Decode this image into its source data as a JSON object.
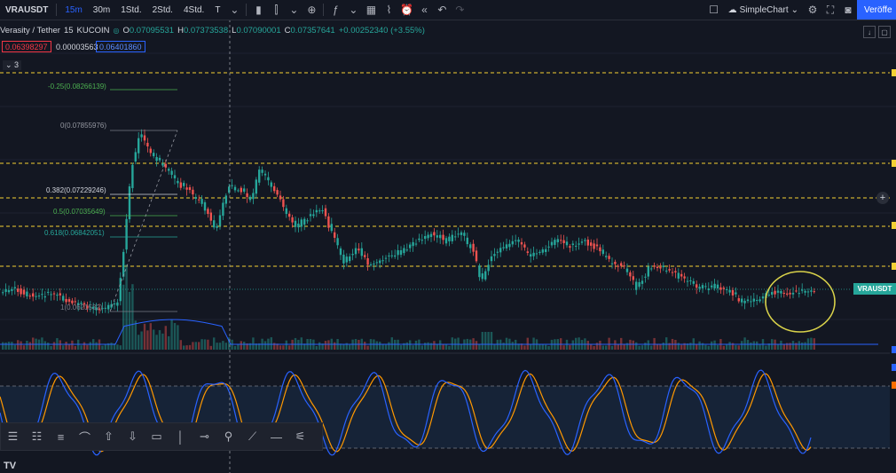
{
  "toolbar": {
    "symbol": "VRAUSDT",
    "intervals": [
      "15m",
      "30m",
      "1Std.",
      "2Std.",
      "4Std.",
      "T"
    ],
    "active_interval": "15m",
    "layout_name": "SimpleChart",
    "publish_label": "Veröffe"
  },
  "legend": {
    "symbol_name": "Verasity / Tether",
    "interval": "15",
    "exchange": "KUCOIN",
    "open": "0.07095531",
    "high": "0.07373538",
    "low": "0.07090001",
    "close": "0.07357641",
    "change": "+0.00252340 (+3.55%)",
    "o_label": "O",
    "h_label": "H",
    "l_label": "L",
    "c_label": "C"
  },
  "prices": {
    "bid": "0.06398297",
    "spread": "0.00003563",
    "ask": "0.06401860"
  },
  "collapse_label": "3",
  "fib_levels": [
    {
      "label": "-0.25(0.08266139)",
      "color": "#4caf50"
    },
    {
      "label": "0(0.07855976)",
      "color": "#787b86"
    },
    {
      "label": "0.382(0.07229246)",
      "color": "#d1d4dc"
    },
    {
      "label": "0.5(0.07035649)",
      "color": "#4caf50"
    },
    {
      "label": "0.618(0.06842051)",
      "color": "#26a69a"
    },
    {
      "label": "1(0.0621532)",
      "color": "#787b86"
    }
  ],
  "price_label": "VRAUSDT",
  "colors": {
    "up": "#26a69a",
    "down": "#ef5350",
    "level_line": "#f5d033",
    "stoch_k": "#2962ff",
    "stoch_d": "#ff9800",
    "highlight": "#d9d24a"
  },
  "icons": {
    "tools": [
      "tool-rows-icon",
      "tool-rows2-icon",
      "tool-lines-icon",
      "tool-curve-icon",
      "arrow-up-icon",
      "arrow-down-icon",
      "rectangle-icon",
      "vertical-line-icon",
      "horizontal-ray-icon",
      "pin-icon",
      "trend-line-icon",
      "horizontal-line-icon",
      "fib-icon"
    ]
  }
}
